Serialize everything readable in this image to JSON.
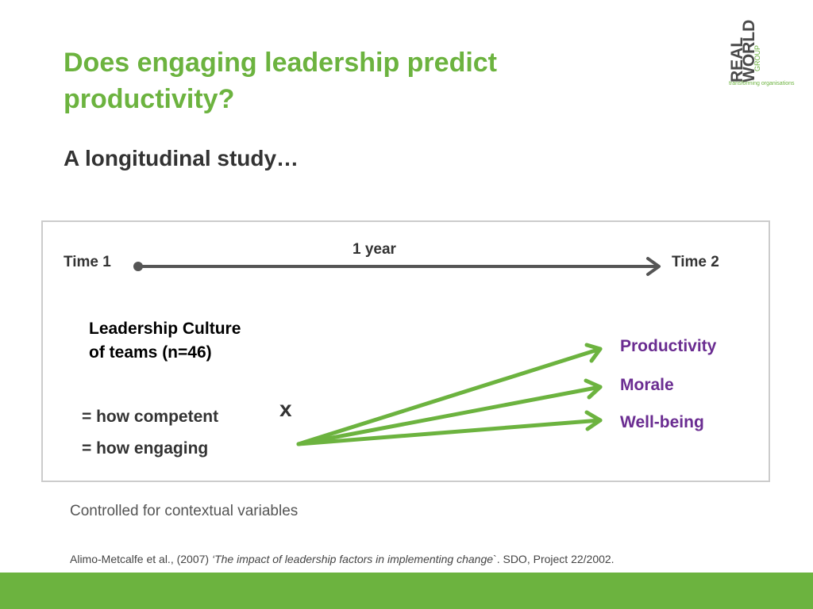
{
  "slide": {
    "title": "Does engaging leadership predict productivity?",
    "subtitle": "A longitudinal study…"
  },
  "logo": {
    "line1": "REAL",
    "line2": "WORLD",
    "line3": "GROUP",
    "tagline": "transforming organisations"
  },
  "diagram": {
    "time_start": "Time 1",
    "time_end": "Time 2",
    "interval": "1 year",
    "predictor": "Leadership Culture of teams (n=46)",
    "measures": [
      "= how competent",
      "= how engaging"
    ],
    "cross_mark": "x",
    "outcomes": [
      "Productivity",
      "Morale",
      "Well-being"
    ]
  },
  "note": "Controlled for contextual variables",
  "citation": {
    "authors": "Alimo-Metcalfe et al., (2007) ",
    "title": "‘The impact of leadership factors in implementing change",
    "rest": "`. SDO, Project 22/2002."
  },
  "colors": {
    "title_green": "#6cb33f",
    "outcome_purple": "#6a2c91",
    "arrow_green": "#6cb33f",
    "timeline_gray": "#555555",
    "footer_green": "#6cb33f"
  }
}
